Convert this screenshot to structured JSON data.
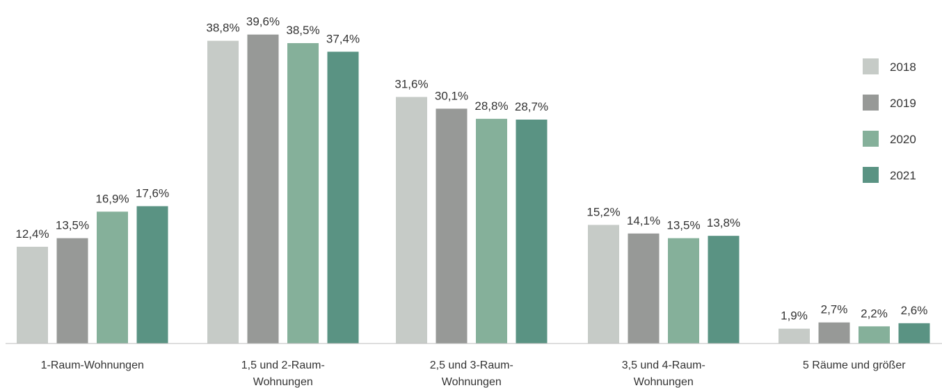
{
  "chart_data": {
    "type": "bar",
    "title": "",
    "xlabel": "",
    "ylabel": "",
    "ylim": [
      0,
      40
    ],
    "grid": false,
    "legend": "right",
    "categories": [
      [
        "1-Raum-Wohnungen"
      ],
      [
        "1,5 und 2-Raum-",
        "Wohnungen"
      ],
      [
        "2,5 und 3-Raum-",
        "Wohnungen"
      ],
      [
        "3,5 und 4-Raum-",
        "Wohnungen"
      ],
      [
        "5 Räume und größer"
      ]
    ],
    "series": [
      {
        "name": "2018",
        "color": "#c6cbc7",
        "values": [
          12.4,
          38.8,
          31.6,
          15.2,
          1.9
        ],
        "labels": [
          "12,4%",
          "38,8%",
          "31,6%",
          "15,2%",
          "1,9%"
        ]
      },
      {
        "name": "2019",
        "color": "#979997",
        "values": [
          13.5,
          39.6,
          30.1,
          14.1,
          2.7
        ],
        "labels": [
          "13,5%",
          "39,6%",
          "30,1%",
          "14,1%",
          "2,7%"
        ]
      },
      {
        "name": "2020",
        "color": "#85b09a",
        "values": [
          16.9,
          38.5,
          28.8,
          13.5,
          2.2
        ],
        "labels": [
          "16,9%",
          "38,5%",
          "28,8%",
          "13,5%",
          "2,2%"
        ]
      },
      {
        "name": "2021",
        "color": "#5a9383",
        "values": [
          17.6,
          37.4,
          28.7,
          13.8,
          2.6
        ],
        "labels": [
          "17,6%",
          "37,4%",
          "28,7%",
          "13,8%",
          "2,6%"
        ]
      }
    ]
  }
}
